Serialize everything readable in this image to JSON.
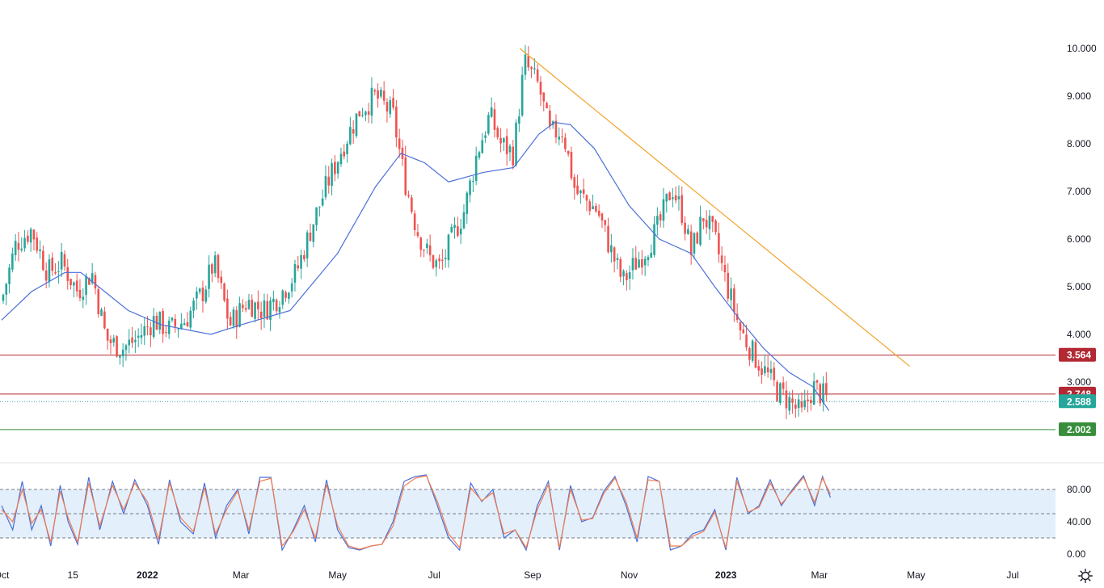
{
  "chart_data": [
    {
      "type": "candlestick",
      "y_ticks": [
        "10.000",
        "9.000",
        "8.000",
        "7.000",
        "6.000",
        "5.000",
        "4.000",
        "3.000"
      ],
      "ylim": [
        1.5,
        10.8
      ],
      "x_ticks": [
        "Oct",
        "15",
        "2022",
        "Mar",
        "May",
        "Jul",
        "Sep",
        "Nov",
        "2023",
        "Mar",
        "May",
        "Jul"
      ],
      "x_tick_dates": [
        "2021-10-01",
        "2021-11-15",
        "2022-01-01",
        "2022-03-01",
        "2022-05-01",
        "2022-07-01",
        "2022-09-01",
        "2022-11-01",
        "2023-01-01",
        "2023-03-01",
        "2023-05-01",
        "2023-07-01"
      ],
      "bold_ticks": [
        "2022",
        "2023"
      ],
      "close_series": {
        "name": "",
        "x": [
          "2021-10-01",
          "2021-10-10",
          "2021-10-20",
          "2021-10-30",
          "2021-11-08",
          "2021-11-18",
          "2021-11-27",
          "2021-12-06",
          "2021-12-16",
          "2021-12-25",
          "2022-01-05",
          "2022-01-15",
          "2022-01-25",
          "2022-02-05",
          "2022-02-12",
          "2022-02-22",
          "2022-03-05",
          "2022-03-15",
          "2022-03-25",
          "2022-04-05",
          "2022-04-15",
          "2022-04-25",
          "2022-05-05",
          "2022-05-15",
          "2022-05-25",
          "2022-06-05",
          "2022-06-12",
          "2022-06-20",
          "2022-06-28",
          "2022-07-05",
          "2022-07-12",
          "2022-07-20",
          "2022-07-28",
          "2022-08-05",
          "2022-08-12",
          "2022-08-20",
          "2022-08-27",
          "2022-09-05",
          "2022-09-12",
          "2022-09-20",
          "2022-09-28",
          "2022-10-05",
          "2022-10-12",
          "2022-10-20",
          "2022-10-28",
          "2022-11-05",
          "2022-11-12",
          "2022-11-20",
          "2022-11-28",
          "2022-12-05",
          "2022-12-10",
          "2022-12-18",
          "2022-12-25",
          "2023-01-01",
          "2023-01-10",
          "2023-01-18",
          "2023-01-26",
          "2023-02-03",
          "2023-02-10",
          "2023-02-18",
          "2023-02-25",
          "2023-03-02",
          "2023-03-07"
        ],
        "values": [
          4.7,
          5.9,
          6.2,
          5.3,
          5.5,
          4.9,
          5.3,
          3.9,
          3.7,
          3.9,
          4.3,
          4.1,
          4.3,
          4.9,
          5.5,
          4.2,
          4.7,
          4.5,
          4.8,
          5.3,
          6.3,
          7.2,
          8.0,
          8.7,
          9.0,
          8.6,
          7.3,
          6.2,
          5.6,
          5.4,
          6.0,
          6.6,
          7.8,
          8.6,
          8.0,
          7.8,
          9.7,
          9.2,
          8.2,
          8.3,
          7.0,
          6.8,
          6.6,
          5.8,
          5.1,
          5.5,
          5.8,
          6.3,
          7.1,
          6.5,
          5.7,
          6.5,
          6.0,
          5.1,
          4.1,
          3.6,
          3.2,
          2.8,
          2.6,
          2.3,
          2.9,
          2.75,
          2.59
        ]
      },
      "moving_average": {
        "name": "",
        "x": [
          "2021-10-01",
          "2021-10-20",
          "2021-11-10",
          "2021-11-20",
          "2021-12-05",
          "2021-12-20",
          "2022-01-10",
          "2022-02-10",
          "2022-03-01",
          "2022-04-01",
          "2022-05-01",
          "2022-05-25",
          "2022-06-10",
          "2022-06-25",
          "2022-07-10",
          "2022-08-01",
          "2022-08-20",
          "2022-09-05",
          "2022-09-15",
          "2022-09-25",
          "2022-10-10",
          "2022-11-01",
          "2022-11-20",
          "2022-12-10",
          "2022-12-25",
          "2023-01-10",
          "2023-01-25",
          "2023-02-10",
          "2023-02-25",
          "2023-03-07"
        ],
        "values": [
          4.3,
          4.9,
          5.3,
          5.3,
          4.9,
          4.5,
          4.2,
          4.0,
          4.2,
          4.5,
          5.7,
          7.1,
          7.8,
          7.6,
          7.2,
          7.4,
          7.5,
          8.2,
          8.45,
          8.4,
          7.9,
          6.7,
          6.0,
          5.7,
          5.0,
          4.3,
          3.7,
          3.2,
          2.9,
          2.4
        ]
      },
      "trendline": {
        "name": "",
        "x": [
          "2022-08-24",
          "2023-04-27"
        ],
        "y": [
          10.0,
          3.33
        ]
      },
      "levels": [
        {
          "label": "3.564",
          "value": 3.564,
          "color": "#b22833"
        },
        {
          "label": "2.748",
          "value": 2.748,
          "color": "#b22833"
        },
        {
          "label": "2.588",
          "value": 2.588,
          "color": "#26a69a",
          "dotted": true
        },
        {
          "label": "2.002",
          "value": 2.002,
          "color": "#388e3c"
        }
      ],
      "colors": {
        "up": "#26a69a",
        "down": "#ef5350",
        "ma": "#4a6fd8",
        "trend": "#f2a32b",
        "axis_bg": "#ffffff"
      },
      "grid": false
    },
    {
      "type": "line",
      "y_ticks": [
        "80.00",
        "40.00",
        "0.00"
      ],
      "ylim": [
        0,
        100
      ],
      "band": [
        20,
        80
      ],
      "midline": 50,
      "series": [
        {
          "name": "",
          "color": "#4a6fd8",
          "x": [
            "2021-10-01",
            "2021-10-08",
            "2021-10-14",
            "2021-10-20",
            "2021-10-26",
            "2021-11-01",
            "2021-11-07",
            "2021-11-12",
            "2021-11-18",
            "2021-11-25",
            "2021-12-02",
            "2021-12-10",
            "2021-12-17",
            "2021-12-24",
            "2022-01-01",
            "2022-01-08",
            "2022-01-15",
            "2022-01-22",
            "2022-01-30",
            "2022-02-06",
            "2022-02-13",
            "2022-02-20",
            "2022-02-27",
            "2022-03-06",
            "2022-03-13",
            "2022-03-20",
            "2022-03-27",
            "2022-04-03",
            "2022-04-10",
            "2022-04-17",
            "2022-04-24",
            "2022-05-01",
            "2022-05-08",
            "2022-05-15",
            "2022-05-22",
            "2022-05-29",
            "2022-06-05",
            "2022-06-12",
            "2022-06-19",
            "2022-06-26",
            "2022-07-03",
            "2022-07-10",
            "2022-07-17",
            "2022-07-24",
            "2022-07-31",
            "2022-08-07",
            "2022-08-14",
            "2022-08-21",
            "2022-08-28",
            "2022-09-04",
            "2022-09-11",
            "2022-09-18",
            "2022-09-25",
            "2022-10-02",
            "2022-10-09",
            "2022-10-16",
            "2022-10-23",
            "2022-10-30",
            "2022-11-06",
            "2022-11-13",
            "2022-11-20",
            "2022-11-27",
            "2022-12-04",
            "2022-12-11",
            "2022-12-18",
            "2022-12-25",
            "2023-01-01",
            "2023-01-08",
            "2023-01-15",
            "2023-01-22",
            "2023-01-29",
            "2023-02-05",
            "2023-02-12",
            "2023-02-19",
            "2023-02-26",
            "2023-03-03",
            "2023-03-08"
          ],
          "values": [
            60,
            30,
            90,
            30,
            60,
            10,
            85,
            40,
            12,
            95,
            30,
            90,
            50,
            92,
            60,
            12,
            92,
            40,
            25,
            88,
            20,
            60,
            80,
            25,
            95,
            95,
            5,
            30,
            60,
            15,
            92,
            30,
            8,
            5,
            10,
            12,
            40,
            90,
            96,
            98,
            60,
            20,
            5,
            88,
            65,
            80,
            20,
            30,
            5,
            60,
            90,
            5,
            85,
            40,
            45,
            78,
            96,
            60,
            15,
            96,
            90,
            5,
            10,
            25,
            30,
            55,
            5,
            95,
            50,
            60,
            92,
            60,
            80,
            97,
            60,
            96,
            70
          ]
        },
        {
          "name": "",
          "color": "#f57c4d",
          "x": [
            "2021-10-01",
            "2021-10-08",
            "2021-10-14",
            "2021-10-20",
            "2021-10-26",
            "2021-11-01",
            "2021-11-07",
            "2021-11-12",
            "2021-11-18",
            "2021-11-25",
            "2021-12-02",
            "2021-12-10",
            "2021-12-17",
            "2021-12-24",
            "2022-01-01",
            "2022-01-08",
            "2022-01-15",
            "2022-01-22",
            "2022-01-30",
            "2022-02-06",
            "2022-02-13",
            "2022-02-20",
            "2022-02-27",
            "2022-03-06",
            "2022-03-13",
            "2022-03-20",
            "2022-03-27",
            "2022-04-03",
            "2022-04-10",
            "2022-04-17",
            "2022-04-24",
            "2022-05-01",
            "2022-05-08",
            "2022-05-15",
            "2022-05-22",
            "2022-05-29",
            "2022-06-05",
            "2022-06-12",
            "2022-06-19",
            "2022-06-26",
            "2022-07-03",
            "2022-07-10",
            "2022-07-17",
            "2022-07-24",
            "2022-07-31",
            "2022-08-07",
            "2022-08-14",
            "2022-08-21",
            "2022-08-28",
            "2022-09-04",
            "2022-09-11",
            "2022-09-18",
            "2022-09-25",
            "2022-10-02",
            "2022-10-09",
            "2022-10-16",
            "2022-10-23",
            "2022-10-30",
            "2022-11-06",
            "2022-11-13",
            "2022-11-20",
            "2022-11-27",
            "2022-12-04",
            "2022-12-11",
            "2022-12-18",
            "2022-12-25",
            "2023-01-01",
            "2023-01-08",
            "2023-01-15",
            "2023-01-22",
            "2023-01-29",
            "2023-02-05",
            "2023-02-12",
            "2023-02-19",
            "2023-02-26",
            "2023-03-03",
            "2023-03-08"
          ],
          "values": [
            55,
            40,
            80,
            38,
            55,
            15,
            78,
            45,
            15,
            88,
            35,
            85,
            55,
            88,
            65,
            18,
            88,
            45,
            28,
            82,
            25,
            55,
            78,
            30,
            90,
            94,
            10,
            28,
            55,
            20,
            86,
            35,
            10,
            6,
            10,
            12,
            35,
            84,
            94,
            97,
            65,
            25,
            8,
            82,
            66,
            76,
            25,
            30,
            8,
            55,
            86,
            8,
            80,
            42,
            44,
            75,
            94,
            65,
            20,
            92,
            90,
            10,
            10,
            22,
            28,
            52,
            8,
            90,
            52,
            58,
            88,
            62,
            78,
            95,
            64,
            94,
            74
          ]
        }
      ]
    }
  ]
}
